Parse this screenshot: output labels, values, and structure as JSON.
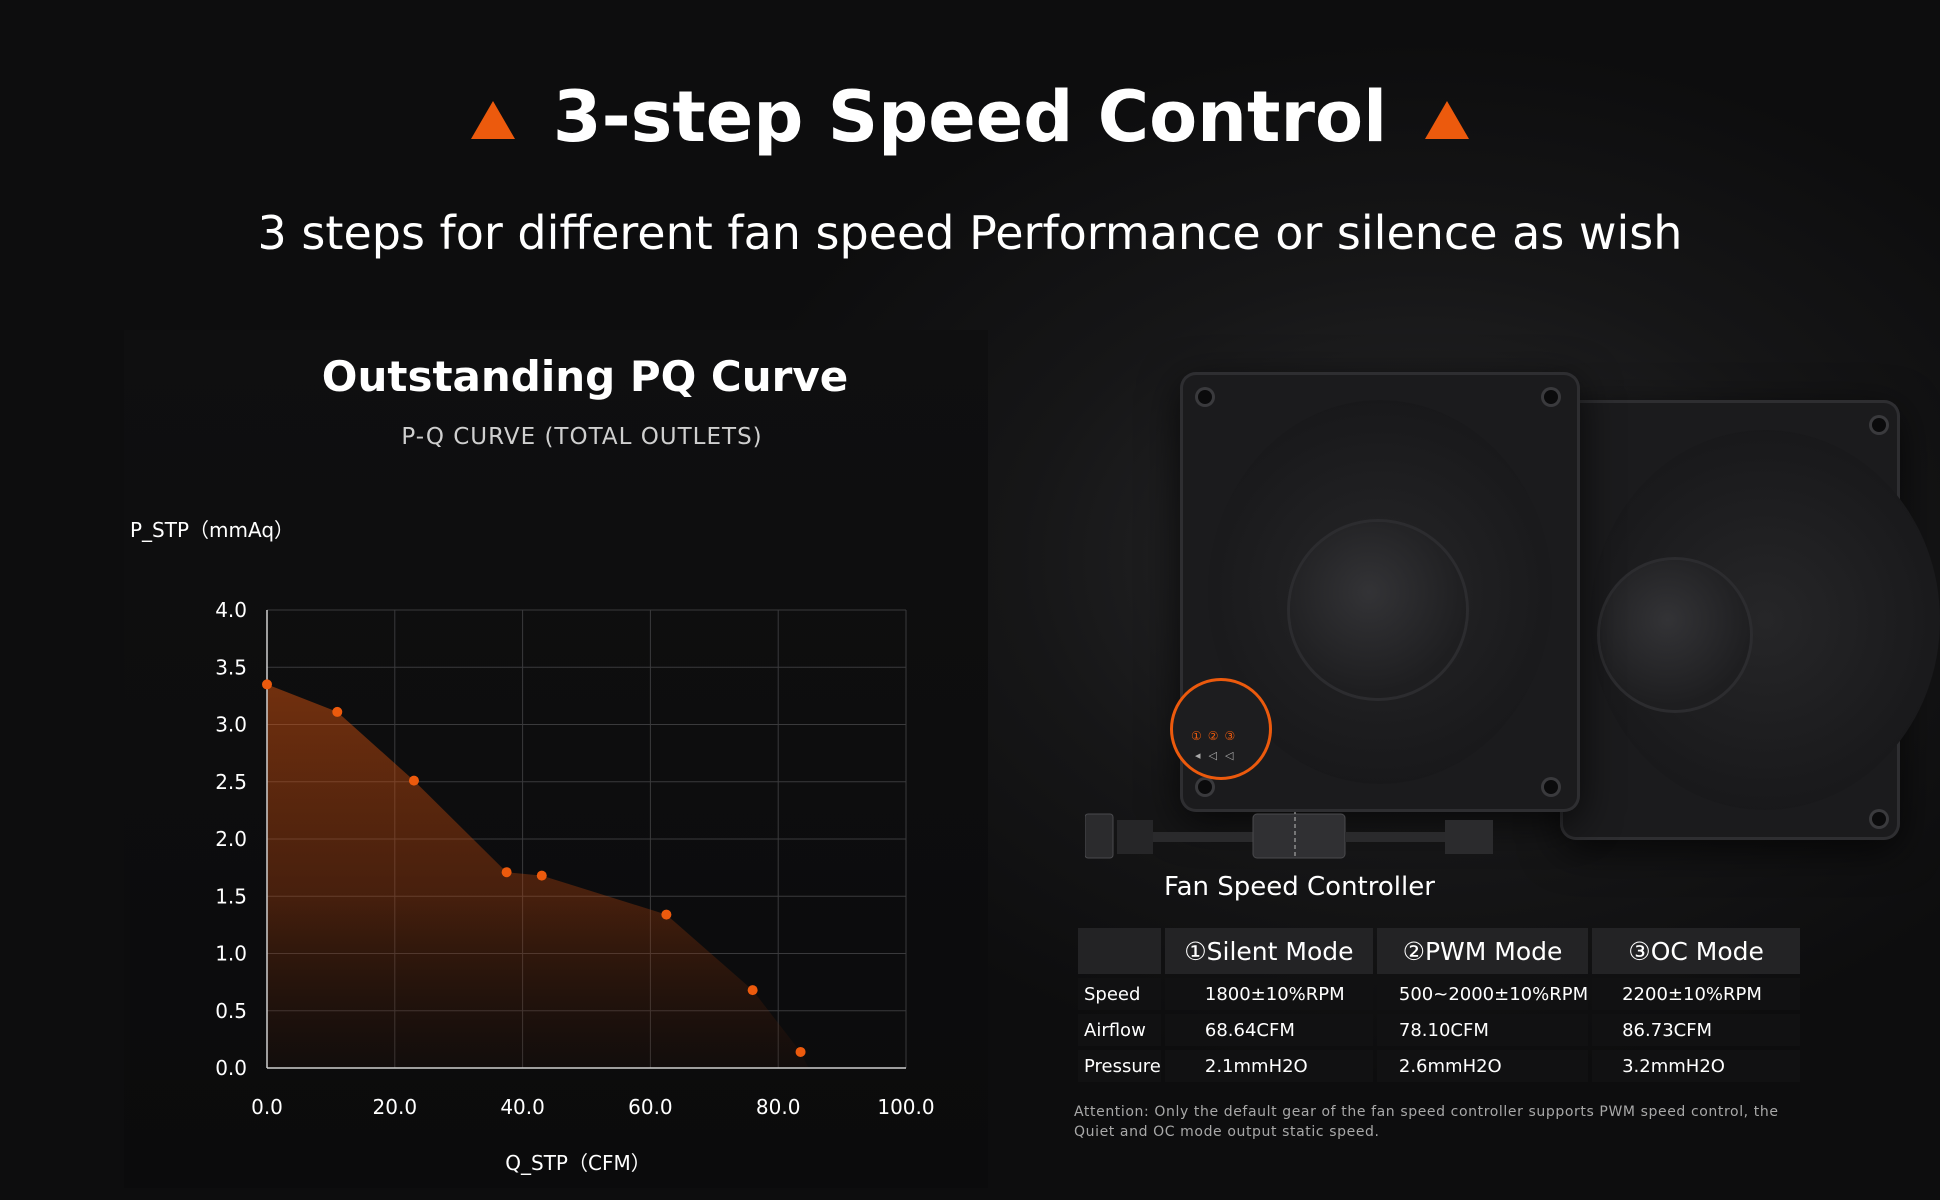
{
  "header": {
    "title": "3-step Speed Control",
    "subtitle": "3 steps for different fan speed Performance or silence as wish",
    "accent_color": "#ec5a0d",
    "title_icon": "triangle-icon"
  },
  "chart_data": {
    "type": "area",
    "title": "Outstanding PQ Curve",
    "subtitle": "P-Q CURVE (TOTAL OUTLETS)",
    "xlabel": "Q_STP（CFM）",
    "ylabel": "P_STP（mmAq）",
    "xlim": [
      0,
      100
    ],
    "ylim": [
      0,
      4
    ],
    "xticks": [
      "0.0",
      "20.0",
      "40.0",
      "60.0",
      "80.0",
      "100.0"
    ],
    "yticks": [
      "0.0",
      "0.5",
      "1.0",
      "1.5",
      "2.0",
      "2.5",
      "3.0",
      "3.5",
      "4.0"
    ],
    "grid": true,
    "series": [
      {
        "x": [
          0,
          11,
          23,
          37.5,
          43,
          62.5,
          76,
          83.5
        ],
        "y": [
          3.35,
          3.11,
          2.51,
          1.71,
          1.68,
          1.34,
          0.68,
          0.14
        ]
      }
    ],
    "color": "#ec5a0d"
  },
  "controller": {
    "label": "Fan Speed Controller",
    "digits": "①②③",
    "arrows": "◂◁◁"
  },
  "spec_table": {
    "headers": [
      "",
      "①Silent Mode",
      "②PWM Mode",
      "③OC Mode"
    ],
    "rows": [
      {
        "label": "Speed",
        "values": [
          "1800±10%RPM",
          "500~2000±10%RPM",
          "2200±10%RPM"
        ]
      },
      {
        "label": "Airflow",
        "values": [
          "68.64CFM",
          "78.10CFM",
          "86.73CFM"
        ]
      },
      {
        "label": "Pressure",
        "values": [
          "2.1mmH2O",
          "2.6mmH2O",
          "3.2mmH2O"
        ]
      }
    ]
  },
  "attention": "Attention: Only the default gear of the fan speed controller supports PWM speed control, the Quiet and OC mode output static speed."
}
